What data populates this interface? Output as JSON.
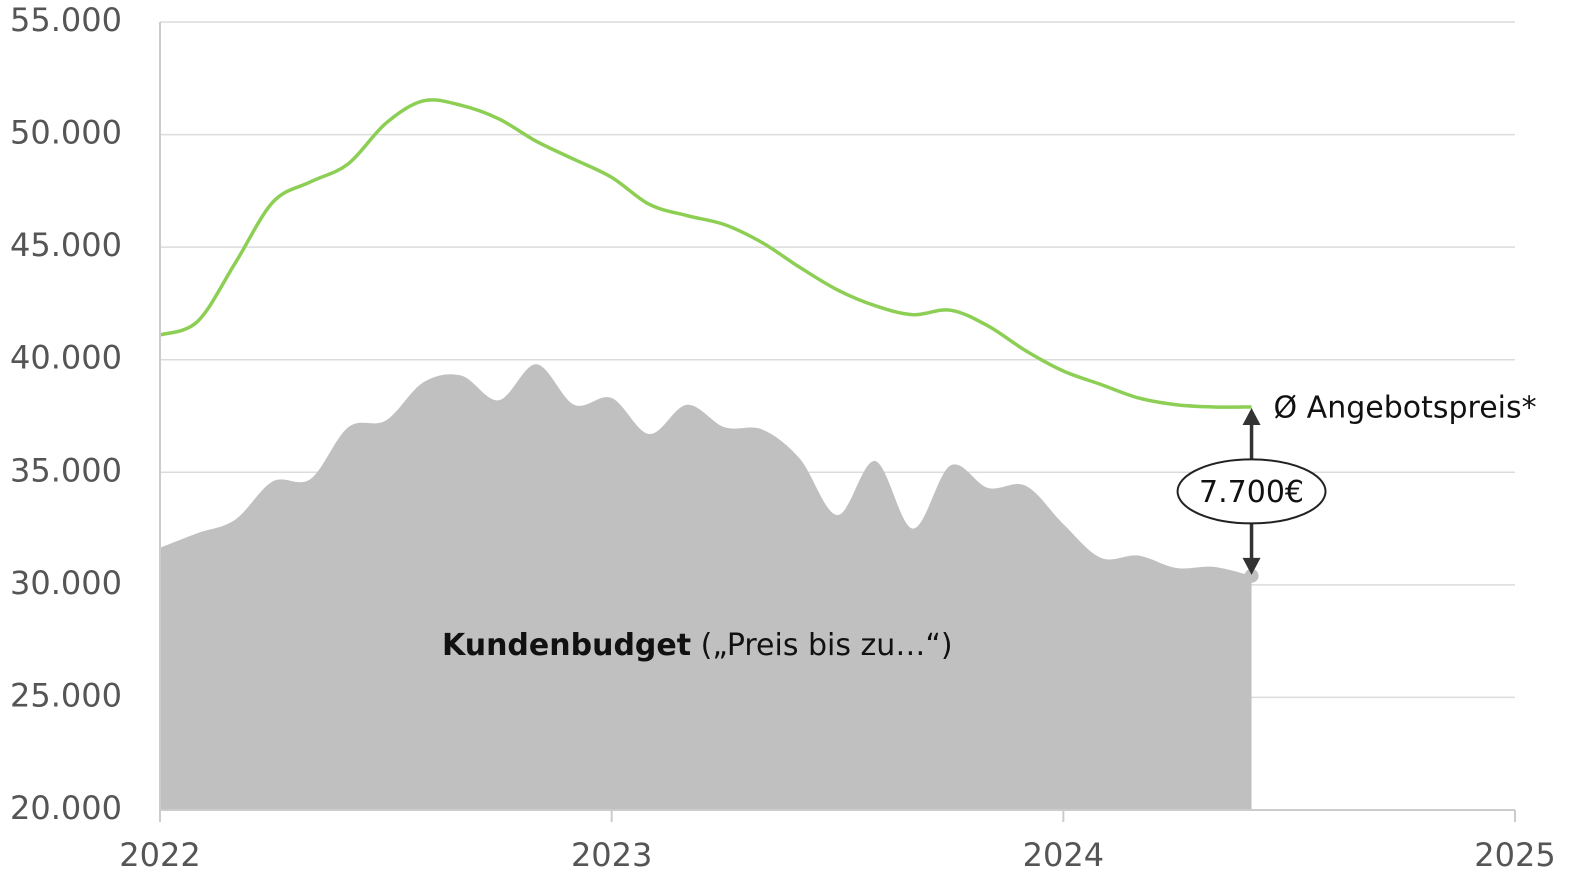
{
  "chart_data": {
    "type": "line",
    "x": [
      2022,
      2022.0833,
      2022.1667,
      2022.25,
      2022.3333,
      2022.4167,
      2022.5,
      2022.5833,
      2022.6667,
      2022.75,
      2022.8333,
      2022.9167,
      2023,
      2023.0833,
      2023.1667,
      2023.25,
      2023.3333,
      2023.4167,
      2023.5,
      2023.5833,
      2023.6667,
      2023.75,
      2023.8333,
      2023.9167,
      2024,
      2024.0833,
      2024.1667,
      2024.25,
      2024.3333,
      2024.4167
    ],
    "series": [
      {
        "name": "Ø Angebotspreis*",
        "color": "#8ccf54",
        "values": [
          41100,
          41700,
          44300,
          47000,
          47900,
          48700,
          50500,
          51500,
          51300,
          50700,
          49700,
          48900,
          48100,
          46900,
          46400,
          46000,
          45200,
          44100,
          43100,
          42400,
          42000,
          42200,
          41500,
          40400,
          39500,
          38900,
          38300,
          38000,
          37900,
          37900
        ]
      },
      {
        "name": "Kundenbudget",
        "color": "#c0c0c0",
        "values": [
          31650,
          32300,
          32900,
          34600,
          34700,
          37000,
          37300,
          39000,
          39300,
          38200,
          39800,
          38000,
          38300,
          36700,
          38000,
          37000,
          36900,
          35600,
          33100,
          35500,
          32500,
          35300,
          34300,
          34400,
          32700,
          31200,
          31300,
          30750,
          30800,
          30400
        ]
      }
    ],
    "annotations": [
      "(„Preis bis zu…“)",
      "7.700€"
    ],
    "xlim": [
      2022,
      2025
    ],
    "xticks": [
      2022,
      2023,
      2024,
      2025
    ],
    "ylim": [
      20000,
      55000
    ],
    "yticks": [
      {
        "value": 20000,
        "label": "20.000"
      },
      {
        "value": 25000,
        "label": "25.000"
      },
      {
        "value": 30000,
        "label": "30.000"
      },
      {
        "value": 35000,
        "label": "35.000"
      },
      {
        "value": 40000,
        "label": "40.000"
      },
      {
        "value": 45000,
        "label": "45.000"
      },
      {
        "value": 50000,
        "label": "50.000"
      },
      {
        "value": 55000,
        "label": "55.000"
      }
    ],
    "grid": true
  }
}
